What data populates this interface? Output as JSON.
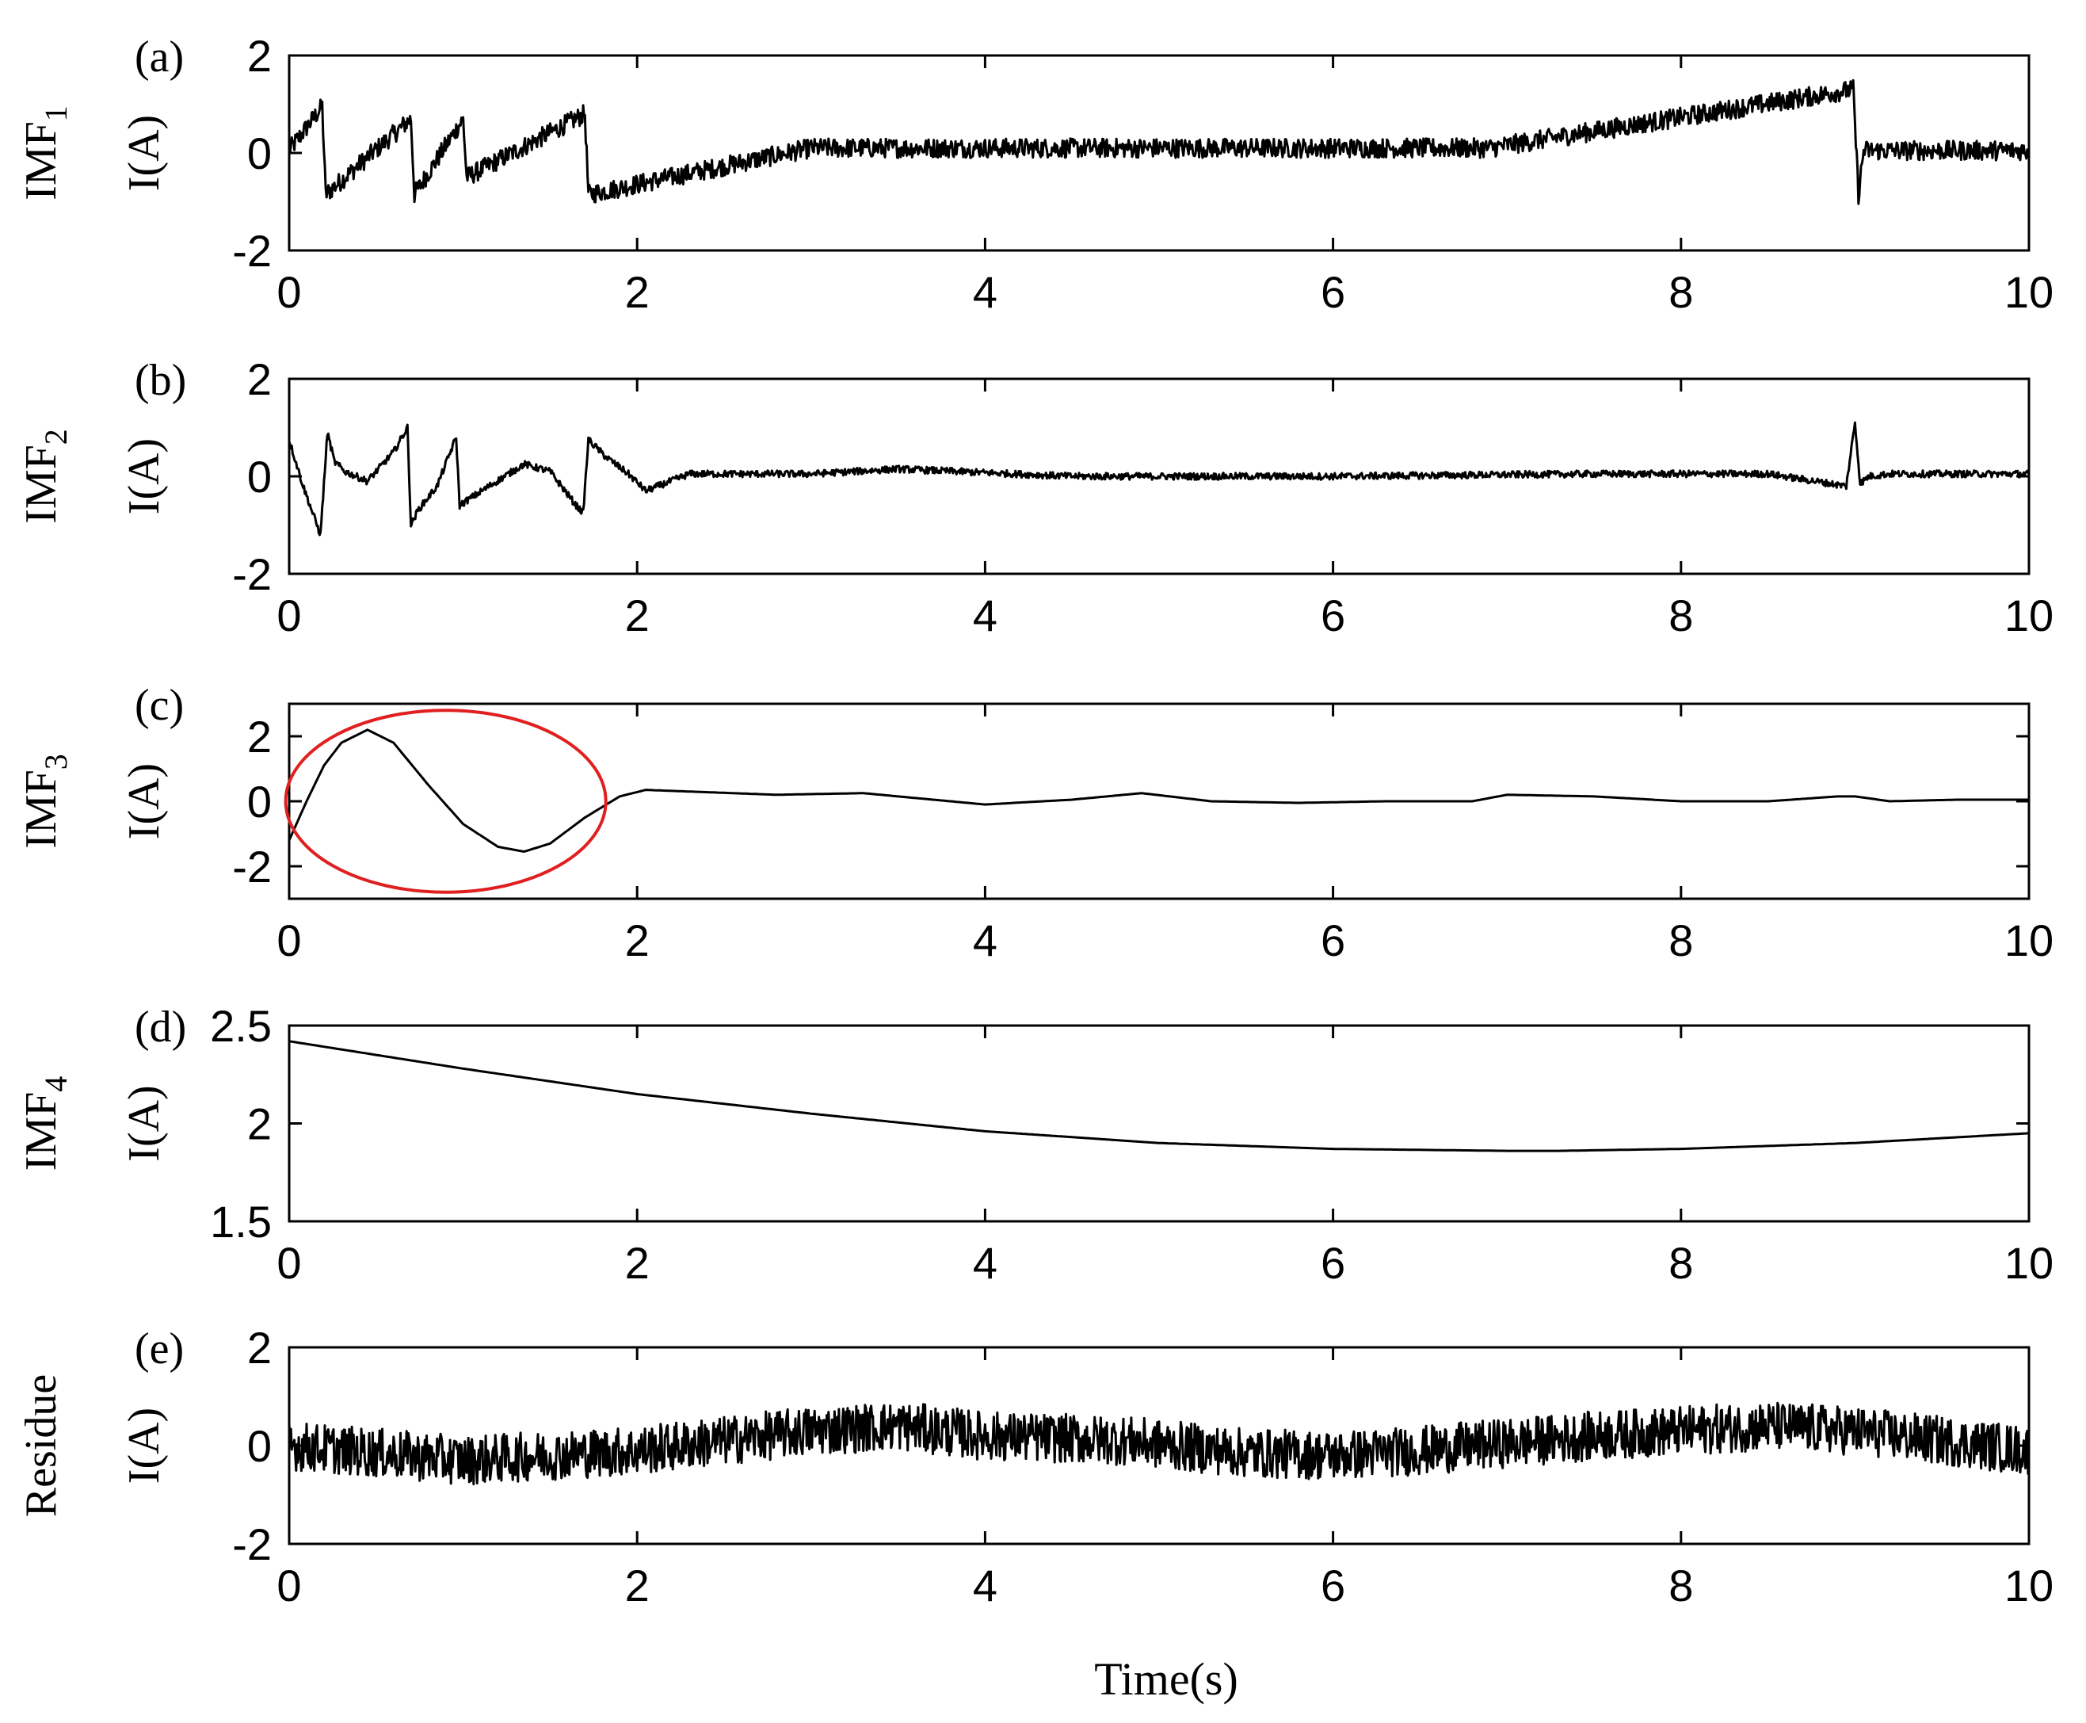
{
  "chart_data": [
    {
      "type": "line",
      "panel_label": "(a)",
      "ylabel_top": "IMF",
      "ylabel_sub": "1",
      "ylabel_bottom": "I(A)",
      "xlim": [
        0,
        10
      ],
      "ylim": [
        -2,
        2
      ],
      "xticks": [
        "0",
        "2",
        "4",
        "6",
        "8",
        "10"
      ],
      "yticks": [
        "-2",
        "0",
        "2"
      ],
      "ytick_values": [
        -2,
        0,
        2
      ],
      "x": [
        0,
        0.19,
        0.21,
        0.7,
        0.72,
        1.0,
        1.02,
        1.7,
        1.72,
        3.0,
        4.8,
        6.9,
        8.99,
        9.02,
        9.05,
        10
      ],
      "y": [
        0.05,
        0.95,
        -0.85,
        0.7,
        -0.85,
        0.7,
        -0.5,
        0.8,
        -0.85,
        0.1,
        0.1,
        0.1,
        1.3,
        -0.85,
        0.05,
        0.05
      ],
      "noise_amplitude": 0.2
    },
    {
      "type": "line",
      "panel_label": "(b)",
      "ylabel_top": "IMF",
      "ylabel_sub": "2",
      "ylabel_bottom": "I(A)",
      "xlim": [
        0,
        10
      ],
      "ylim": [
        -2,
        2
      ],
      "xticks": [
        "0",
        "2",
        "4",
        "6",
        "8",
        "10"
      ],
      "yticks": [
        "-2",
        "0",
        "2"
      ],
      "ytick_values": [
        -2,
        0,
        2
      ],
      "x": [
        0,
        0.08,
        0.18,
        0.22,
        0.26,
        0.32,
        0.45,
        0.6,
        0.68,
        0.7,
        0.74,
        0.85,
        0.96,
        0.98,
        1.02,
        1.15,
        1.35,
        1.5,
        1.65,
        1.69,
        1.72,
        1.82,
        1.95,
        2.05,
        2.3,
        3.0,
        3.5,
        4.5,
        6.0,
        7.5,
        8.5,
        8.95,
        9.0,
        9.03,
        9.08,
        9.2,
        10
      ],
      "y": [
        0.75,
        -0.2,
        -1.2,
        0.9,
        0.3,
        0.1,
        -0.1,
        0.5,
        1.0,
        -1.0,
        -0.7,
        -0.2,
        0.8,
        -0.6,
        -0.5,
        -0.2,
        0.25,
        0.1,
        -0.6,
        -0.75,
        0.75,
        0.4,
        0.05,
        -0.3,
        0.05,
        0.05,
        0.15,
        0.0,
        0.0,
        0.05,
        0.05,
        -0.2,
        1.1,
        -0.15,
        0.0,
        0.05,
        0.05
      ],
      "noise_amplitude": 0.07
    },
    {
      "type": "line",
      "panel_label": "(c)",
      "ylabel_top": "IMF",
      "ylabel_sub": "3",
      "ylabel_bottom": "I(A)",
      "xlim": [
        0,
        10
      ],
      "ylim": [
        -3,
        3
      ],
      "xticks": [
        "0",
        "2",
        "4",
        "6",
        "8",
        "10"
      ],
      "yticks": [
        "-2",
        "0",
        "2"
      ],
      "ytick_values": [
        -2,
        0,
        2
      ],
      "x": [
        0,
        0.1,
        0.2,
        0.3,
        0.45,
        0.6,
        0.8,
        1.0,
        1.2,
        1.35,
        1.5,
        1.7,
        1.9,
        2.05,
        2.3,
        2.8,
        3.3,
        3.6,
        4.0,
        4.5,
        4.9,
        5.3,
        5.8,
        6.3,
        6.8,
        7.0,
        7.5,
        8.0,
        8.5,
        8.9,
        9.0,
        9.2,
        9.6,
        10
      ],
      "y": [
        -1.2,
        0.0,
        1.1,
        1.8,
        2.2,
        1.8,
        0.5,
        -0.7,
        -1.4,
        -1.55,
        -1.3,
        -0.5,
        0.15,
        0.35,
        0.3,
        0.2,
        0.25,
        0.1,
        -0.1,
        0.05,
        0.25,
        0.0,
        -0.05,
        0.0,
        0.0,
        0.2,
        0.15,
        0.0,
        0.0,
        0.15,
        0.15,
        0.0,
        0.05,
        0.05
      ],
      "noise_amplitude": 0,
      "annotation": "red ellipse around the 0–1.8 s oscillation",
      "ellipse_center": [
        0.9,
        0.0
      ],
      "ellipse_radii": [
        0.92,
        2.8
      ],
      "ellipse_color": "#e02020"
    },
    {
      "type": "line",
      "panel_label": "(d)",
      "ylabel_top": "IMF",
      "ylabel_sub": "4",
      "ylabel_bottom": "I(A)",
      "xlim": [
        0,
        10
      ],
      "ylim": [
        1.5,
        2.5
      ],
      "xticks": [
        "0",
        "2",
        "4",
        "6",
        "8",
        "10"
      ],
      "yticks": [
        "1.5",
        "2",
        "2.5"
      ],
      "ytick_values": [
        1.5,
        2,
        2.5
      ],
      "x": [
        0,
        1,
        2,
        3,
        4,
        5,
        6,
        7,
        7.3,
        8,
        9,
        10
      ],
      "y": [
        2.42,
        2.28,
        2.15,
        2.05,
        1.96,
        1.9,
        1.87,
        1.86,
        1.86,
        1.87,
        1.9,
        1.95
      ],
      "noise_amplitude": 0
    },
    {
      "type": "line",
      "panel_label": "(e)",
      "ylabel_top": "Residue",
      "ylabel_sub": "",
      "ylabel_bottom": "I(A)",
      "xlim": [
        0,
        10
      ],
      "ylim": [
        -2,
        2
      ],
      "xticks": [
        "0",
        "2",
        "4",
        "6",
        "8",
        "10"
      ],
      "yticks": [
        "-2",
        "0",
        "2"
      ],
      "ytick_values": [
        -2,
        0,
        2
      ],
      "x": [
        0,
        1,
        2,
        3,
        3.5,
        4,
        4.8,
        5.5,
        6,
        6.5,
        7.5,
        8.5,
        9,
        10
      ],
      "y": [
        0.0,
        -0.3,
        -0.1,
        0.3,
        0.4,
        0.2,
        0.1,
        -0.15,
        -0.2,
        -0.1,
        0.2,
        0.4,
        0.3,
        -0.1
      ],
      "noise_amplitude": 0.5
    }
  ],
  "xlabel": "Time(s)"
}
